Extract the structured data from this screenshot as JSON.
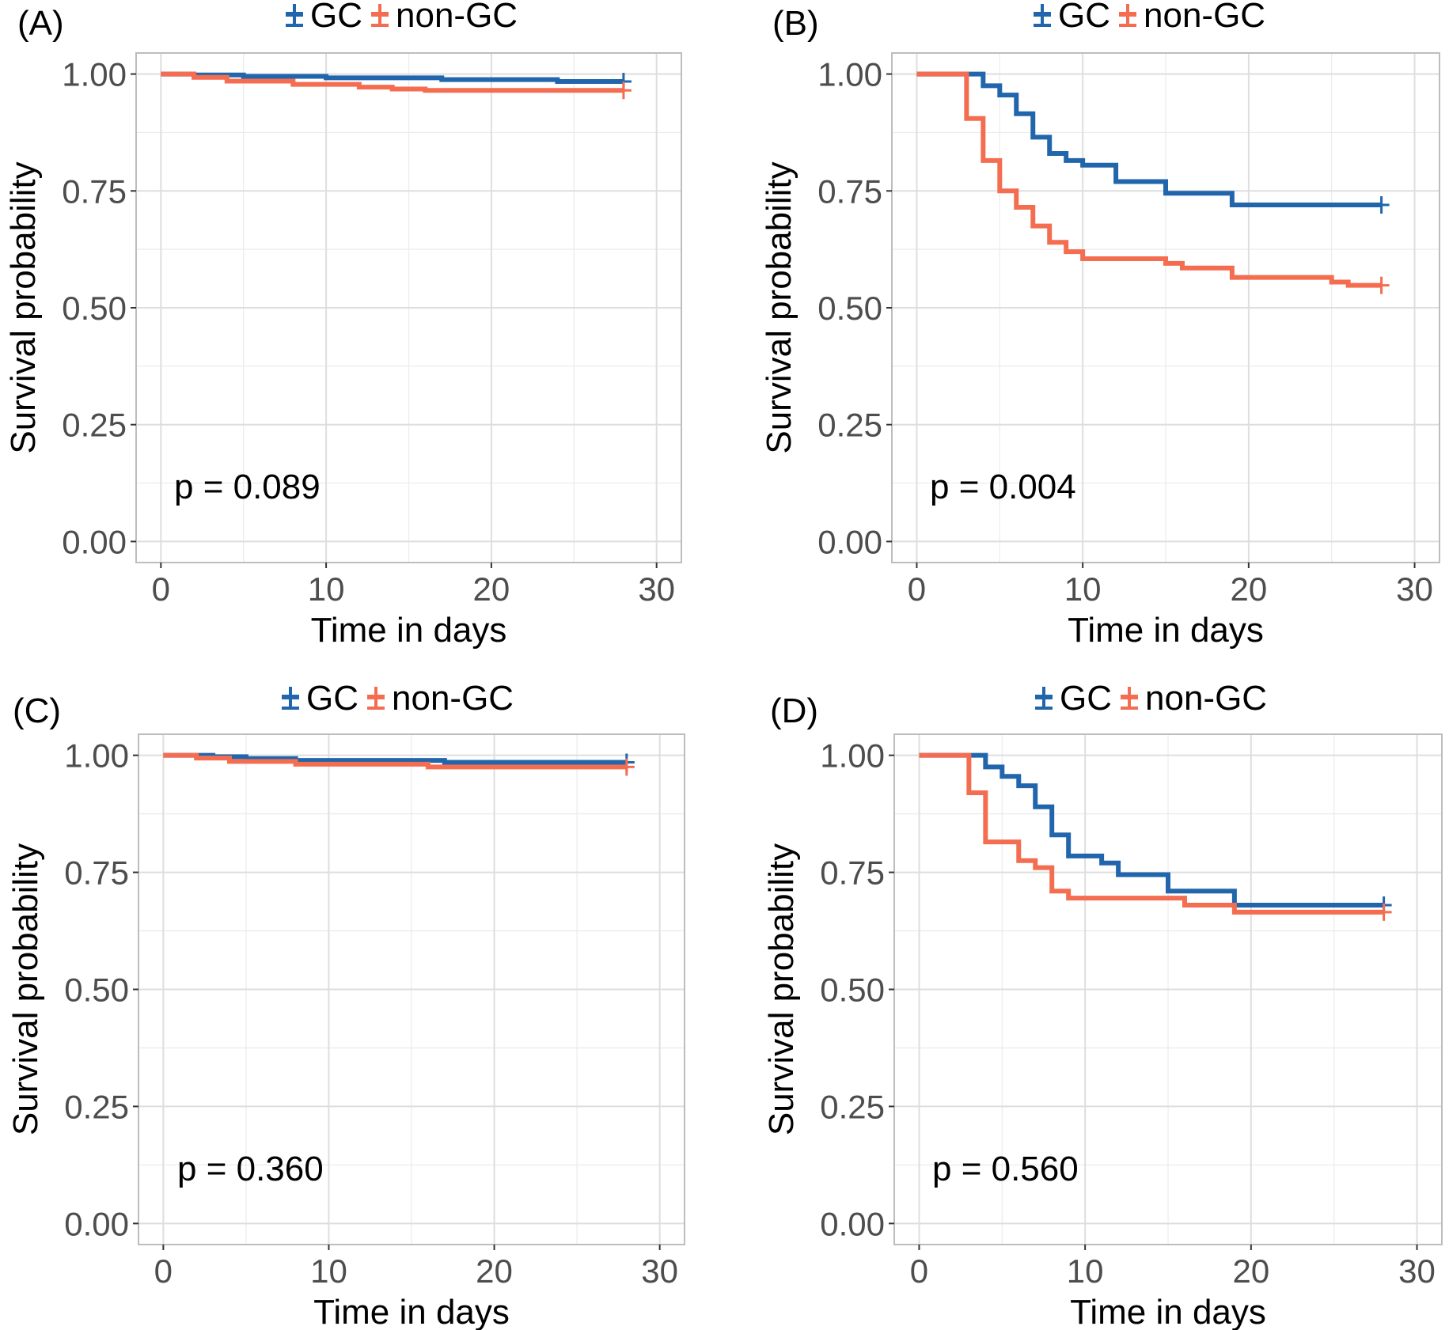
{
  "chart_data": [
    {
      "panel_label": "(A)",
      "type": "line",
      "xlabel": "Time in days",
      "ylabel": "Survival probability",
      "xlim": [
        -1.5,
        31.5
      ],
      "ylim": [
        -0.045,
        1.045
      ],
      "x_ticks": [
        "0",
        "10",
        "20",
        "30"
      ],
      "y_ticks": [
        "0.00",
        "0.25",
        "0.50",
        "0.75",
        "1.00"
      ],
      "grid": true,
      "legend_position": "top",
      "annotation": "p = 0.089",
      "series": [
        {
          "name": "GC",
          "color": "#2166ac",
          "steps": [
            [
              0,
              1.0
            ],
            [
              2,
              0.998
            ],
            [
              5,
              0.995
            ],
            [
              10,
              0.992
            ],
            [
              17,
              0.988
            ],
            [
              24,
              0.984
            ],
            [
              28,
              0.984
            ]
          ],
          "censor": [
            28,
            0.984
          ]
        },
        {
          "name": "non-GC",
          "color": "#f46d50",
          "steps": [
            [
              0,
              1.0
            ],
            [
              2,
              0.993
            ],
            [
              4,
              0.985
            ],
            [
              8,
              0.978
            ],
            [
              12,
              0.972
            ],
            [
              14,
              0.968
            ],
            [
              16,
              0.965
            ],
            [
              28,
              0.965
            ]
          ],
          "censor": [
            28,
            0.965
          ]
        }
      ]
    },
    {
      "panel_label": "(B)",
      "type": "line",
      "xlabel": "Time in days",
      "ylabel": "Survival probability",
      "xlim": [
        -1.5,
        31.5
      ],
      "ylim": [
        -0.045,
        1.045
      ],
      "x_ticks": [
        "0",
        "10",
        "20",
        "30"
      ],
      "y_ticks": [
        "0.00",
        "0.25",
        "0.50",
        "0.75",
        "1.00"
      ],
      "grid": true,
      "legend_position": "top",
      "annotation": "p = 0.004",
      "series": [
        {
          "name": "GC",
          "color": "#2166ac",
          "steps": [
            [
              0,
              1.0
            ],
            [
              3,
              1.0
            ],
            [
              4,
              0.975
            ],
            [
              5,
              0.955
            ],
            [
              6,
              0.915
            ],
            [
              7,
              0.865
            ],
            [
              8,
              0.83
            ],
            [
              9,
              0.815
            ],
            [
              10,
              0.805
            ],
            [
              12,
              0.77
            ],
            [
              15,
              0.745
            ],
            [
              19,
              0.72
            ],
            [
              28,
              0.72
            ]
          ],
          "censor": [
            28,
            0.72
          ]
        },
        {
          "name": "non-GC",
          "color": "#f46d50",
          "steps": [
            [
              0,
              1.0
            ],
            [
              3,
              0.905
            ],
            [
              4,
              0.815
            ],
            [
              5,
              0.75
            ],
            [
              6,
              0.715
            ],
            [
              7,
              0.675
            ],
            [
              8,
              0.64
            ],
            [
              9,
              0.62
            ],
            [
              10,
              0.605
            ],
            [
              15,
              0.595
            ],
            [
              16,
              0.585
            ],
            [
              19,
              0.565
            ],
            [
              25,
              0.555
            ],
            [
              26,
              0.548
            ],
            [
              28,
              0.548
            ]
          ],
          "censor": [
            28,
            0.548
          ]
        }
      ]
    },
    {
      "panel_label": "(C)",
      "type": "line",
      "xlabel": "Time in days",
      "ylabel": "Survival probability",
      "xlim": [
        -1.5,
        31.5
      ],
      "ylim": [
        -0.045,
        1.045
      ],
      "x_ticks": [
        "0",
        "10",
        "20",
        "30"
      ],
      "y_ticks": [
        "0.00",
        "0.25",
        "0.50",
        "0.75",
        "1.00"
      ],
      "grid": true,
      "legend_position": "top",
      "annotation": "p = 0.360",
      "series": [
        {
          "name": "GC",
          "color": "#2166ac",
          "steps": [
            [
              0,
              1.0
            ],
            [
              3,
              0.997
            ],
            [
              5,
              0.993
            ],
            [
              8,
              0.989
            ],
            [
              17,
              0.985
            ],
            [
              28,
              0.985
            ]
          ],
          "censor": [
            28,
            0.985
          ]
        },
        {
          "name": "non-GC",
          "color": "#f46d50",
          "steps": [
            [
              0,
              1.0
            ],
            [
              2,
              0.994
            ],
            [
              4,
              0.987
            ],
            [
              8,
              0.981
            ],
            [
              16,
              0.975
            ],
            [
              28,
              0.975
            ]
          ],
          "censor": [
            28,
            0.975
          ]
        }
      ]
    },
    {
      "panel_label": "(D)",
      "type": "line",
      "xlabel": "Time in days",
      "ylabel": "Survival probability",
      "xlim": [
        -1.5,
        31.5
      ],
      "ylim": [
        -0.045,
        1.045
      ],
      "x_ticks": [
        "0",
        "10",
        "20",
        "30"
      ],
      "y_ticks": [
        "0.00",
        "0.25",
        "0.50",
        "0.75",
        "1.00"
      ],
      "grid": true,
      "legend_position": "top",
      "annotation": "p = 0.560",
      "series": [
        {
          "name": "GC",
          "color": "#2166ac",
          "steps": [
            [
              0,
              1.0
            ],
            [
              3,
              1.0
            ],
            [
              4,
              0.975
            ],
            [
              5,
              0.955
            ],
            [
              6,
              0.935
            ],
            [
              7,
              0.89
            ],
            [
              8,
              0.83
            ],
            [
              9,
              0.785
            ],
            [
              11,
              0.77
            ],
            [
              12,
              0.745
            ],
            [
              15,
              0.71
            ],
            [
              19,
              0.68
            ],
            [
              28,
              0.68
            ]
          ],
          "censor": [
            28,
            0.68
          ]
        },
        {
          "name": "non-GC",
          "color": "#f46d50",
          "steps": [
            [
              0,
              1.0
            ],
            [
              3,
              0.92
            ],
            [
              4,
              0.815
            ],
            [
              6,
              0.775
            ],
            [
              7,
              0.76
            ],
            [
              8,
              0.71
            ],
            [
              9,
              0.695
            ],
            [
              16,
              0.68
            ],
            [
              19,
              0.665
            ],
            [
              28,
              0.665
            ]
          ],
          "censor": [
            28,
            0.665
          ]
        }
      ]
    }
  ]
}
